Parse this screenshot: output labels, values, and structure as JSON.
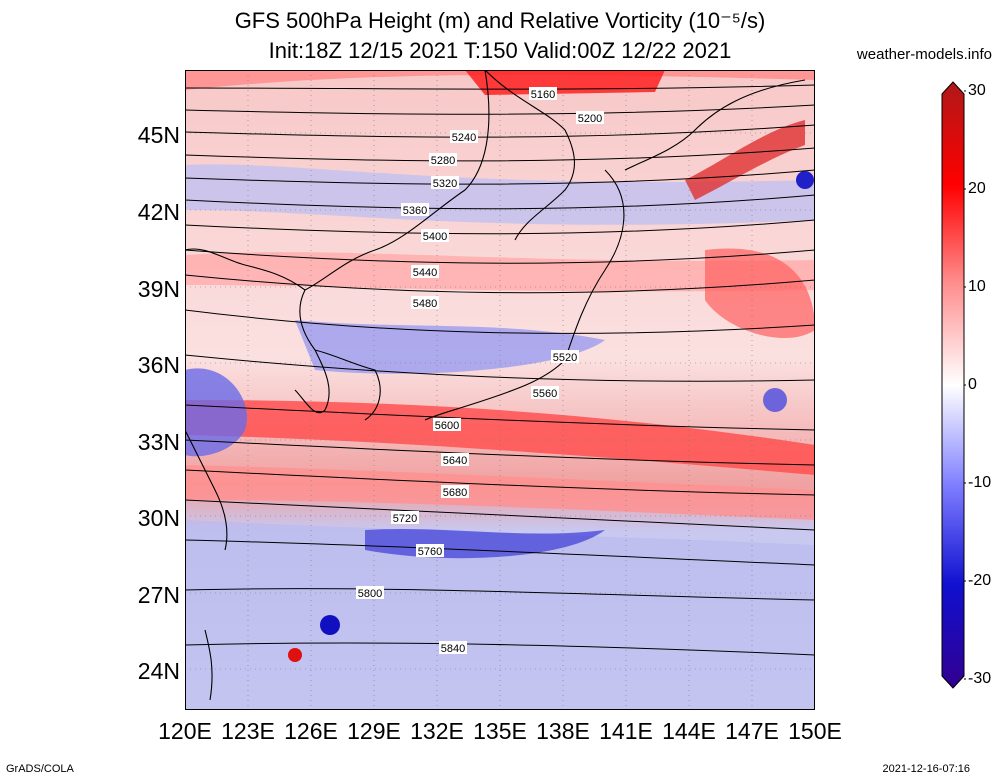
{
  "title": {
    "line1": "GFS 500hPa Height (m) and Relative Vorticity (10⁻⁵/s)",
    "line2": "Init:18Z 12/15 2021 T:150 Valid:00Z 12/22 2021"
  },
  "source": "weather-models.info",
  "footer": {
    "left": "GrADS/COLA",
    "right": "2021-12-16-07:16"
  },
  "axes": {
    "lat_ticks": [
      "45N",
      "42N",
      "39N",
      "36N",
      "33N",
      "30N",
      "27N",
      "24N"
    ],
    "lon_ticks": [
      "120E",
      "123E",
      "126E",
      "129E",
      "132E",
      "135E",
      "138E",
      "141E",
      "144E",
      "147E",
      "150E"
    ]
  },
  "colorbar": {
    "ticks": [
      "30",
      "20",
      "10",
      "0",
      "-10",
      "-20",
      "-30"
    ],
    "colors": [
      "#b01818",
      "#ff0000",
      "#ff8c8c",
      "#ffffff",
      "#7b7bff",
      "#1010d0",
      "#320090"
    ]
  },
  "contours": [
    {
      "label": "5160"
    },
    {
      "label": "5200"
    },
    {
      "label": "5240"
    },
    {
      "label": "5280"
    },
    {
      "label": "5320"
    },
    {
      "label": "5360"
    },
    {
      "label": "5400"
    },
    {
      "label": "5440"
    },
    {
      "label": "5480"
    },
    {
      "label": "5520"
    },
    {
      "label": "5560"
    },
    {
      "label": "5600"
    },
    {
      "label": "5640"
    },
    {
      "label": "5680"
    },
    {
      "label": "5720"
    },
    {
      "label": "5760"
    },
    {
      "label": "5800"
    },
    {
      "label": "5840"
    }
  ]
}
